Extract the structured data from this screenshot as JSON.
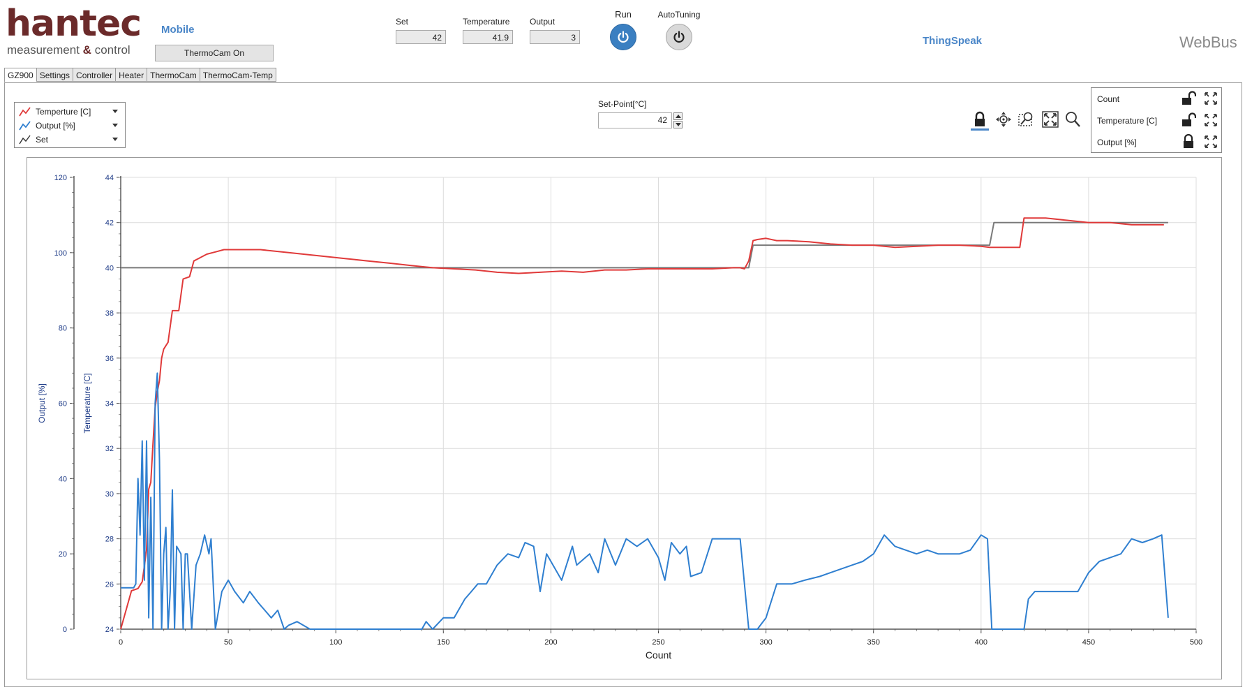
{
  "header": {
    "logo_text": "hantec",
    "logo_sub_pre": "measurement",
    "logo_sub_amp": "&",
    "logo_sub_post": "control",
    "mobile_link": "Mobile",
    "thermocam_button": "ThermoCam On",
    "thingspeak_link": "ThingSpeak",
    "webbus_label": "WebBus"
  },
  "readouts": {
    "set_label": "Set",
    "set_value": "42",
    "temperature_label": "Temperature",
    "temperature_value": "41.9",
    "output_label": "Output",
    "output_value": "3"
  },
  "controls": {
    "run_label": "Run",
    "autotuning_label": "AutoTuning"
  },
  "tabs": [
    {
      "label": "GZ900",
      "active": true
    },
    {
      "label": "Settings"
    },
    {
      "label": "Controller"
    },
    {
      "label": "Heater"
    },
    {
      "label": "ThermoCam"
    },
    {
      "label": "ThermoCam-Temp"
    }
  ],
  "legend": [
    {
      "label": "Temperture [C]",
      "color": "#e03a3a"
    },
    {
      "label": "Output [%]",
      "color": "#2f7fd0"
    },
    {
      "label": "Set",
      "color": "#333333"
    }
  ],
  "setpoint": {
    "label": "Set-Point[°C]",
    "value": "42"
  },
  "axis_panel": [
    {
      "label": "Count",
      "lock": "unlocked"
    },
    {
      "label": "Temperature [C]",
      "lock": "unlocked"
    },
    {
      "label": "Output [%]",
      "lock": "locked"
    }
  ],
  "chart_data": {
    "type": "line",
    "xlabel": "Count",
    "ylabel_left_outer": "Output [%]",
    "ylabel_left_inner": "Temperature [C]",
    "xlim": [
      0,
      500
    ],
    "x_ticks": [
      0,
      50,
      100,
      150,
      200,
      250,
      300,
      350,
      400,
      450,
      500
    ],
    "temp_lim": [
      24,
      44
    ],
    "temp_ticks": [
      24,
      26,
      28,
      30,
      32,
      34,
      36,
      38,
      40,
      42,
      44
    ],
    "output_lim": [
      0,
      120
    ],
    "output_ticks": [
      0,
      20,
      40,
      60,
      80,
      100,
      120
    ],
    "grid": true,
    "series": [
      {
        "name": "Set",
        "axis": "temp",
        "color": "#7a7a7a",
        "x": [
          0,
          292,
          294,
          404,
          406,
          487
        ],
        "y": [
          40,
          40,
          41,
          41,
          42,
          42
        ]
      },
      {
        "name": "Temperture [C]",
        "axis": "temp",
        "color": "#e03a3a",
        "x": [
          0,
          5,
          8,
          10,
          12,
          13,
          14,
          15,
          16,
          17,
          18,
          19,
          20,
          22,
          24,
          27,
          29,
          32,
          34,
          36,
          40,
          44,
          48,
          55,
          65,
          75,
          85,
          95,
          105,
          115,
          125,
          135,
          145,
          155,
          165,
          175,
          185,
          195,
          205,
          215,
          225,
          235,
          245,
          255,
          265,
          275,
          285,
          288,
          290,
          292,
          294,
          296,
          300,
          305,
          310,
          320,
          330,
          340,
          350,
          360,
          370,
          380,
          390,
          400,
          404,
          408,
          415,
          418,
          420,
          430,
          440,
          450,
          460,
          470,
          480,
          485
        ],
        "y": [
          24,
          25.7,
          25.8,
          26.1,
          27.5,
          30.2,
          30.5,
          32.2,
          33.8,
          34.5,
          35,
          36,
          36.4,
          36.7,
          38.1,
          38.1,
          39.5,
          39.6,
          40.3,
          40.4,
          40.6,
          40.7,
          40.8,
          40.8,
          40.8,
          40.7,
          40.6,
          40.5,
          40.4,
          40.3,
          40.2,
          40.1,
          40,
          39.95,
          39.9,
          39.8,
          39.75,
          39.8,
          39.85,
          39.8,
          39.9,
          39.9,
          39.95,
          39.95,
          39.95,
          39.95,
          40,
          40,
          39.95,
          40.3,
          41.2,
          41.25,
          41.3,
          41.2,
          41.2,
          41.15,
          41.05,
          41,
          41,
          40.9,
          40.95,
          41,
          41,
          40.95,
          40.9,
          40.9,
          40.9,
          40.9,
          42.2,
          42.2,
          42.1,
          42,
          42,
          41.9,
          41.9,
          41.9
        ]
      },
      {
        "name": "Output [%]",
        "axis": "output",
        "color": "#2f7fd0",
        "x": [
          0,
          6,
          7,
          8,
          9,
          10,
          11,
          12,
          13,
          14,
          15,
          16,
          17,
          18,
          19,
          20,
          21,
          22,
          23,
          24,
          25,
          26,
          28,
          29,
          30,
          31,
          33,
          35,
          37,
          39,
          41,
          42,
          44,
          47,
          50,
          53,
          57,
          60,
          64,
          67,
          70,
          73,
          76,
          78,
          82,
          88,
          90,
          100,
          110,
          120,
          130,
          140,
          142,
          145,
          150,
          155,
          160,
          163,
          166,
          170,
          175,
          180,
          185,
          188,
          192,
          195,
          198,
          200,
          205,
          210,
          212,
          218,
          222,
          225,
          230,
          235,
          240,
          245,
          250,
          253,
          256,
          260,
          263,
          265,
          270,
          275,
          280,
          283,
          285,
          288,
          292,
          294,
          296,
          300,
          305,
          312,
          318,
          325,
          330,
          335,
          340,
          345,
          350,
          355,
          360,
          365,
          370,
          375,
          380,
          385,
          390,
          395,
          400,
          403,
          405,
          410,
          415,
          420,
          422,
          425,
          430,
          440,
          445,
          450,
          455,
          460,
          465,
          470,
          475,
          480,
          484,
          487
        ],
        "y": [
          11,
          11,
          12,
          40,
          25,
          50,
          13,
          50,
          3,
          35,
          0,
          60,
          68,
          45,
          0,
          20,
          27,
          0,
          10,
          37,
          0,
          22,
          20,
          0,
          20,
          20,
          0,
          17,
          20,
          25,
          20,
          24,
          0,
          10,
          13,
          10,
          7,
          10,
          7,
          5,
          3,
          5,
          0,
          1,
          2,
          0,
          0,
          0,
          0,
          0,
          0,
          0,
          2,
          0,
          3,
          3,
          8,
          10,
          12,
          12,
          17,
          20,
          19,
          23,
          22,
          10,
          20,
          18,
          13,
          22,
          17,
          20,
          15,
          24,
          17,
          24,
          22,
          24,
          19,
          13,
          23,
          20,
          22,
          14,
          15,
          24,
          24,
          24,
          24,
          24,
          0,
          0,
          0,
          3,
          12,
          12,
          13,
          14,
          15,
          16,
          17,
          18,
          20,
          25,
          22,
          21,
          20,
          21,
          20,
          20,
          20,
          21,
          25,
          24,
          0,
          0,
          0,
          0,
          8,
          10,
          10,
          10,
          10,
          15,
          18,
          19,
          20,
          24,
          23,
          24,
          25,
          3
        ]
      }
    ]
  }
}
